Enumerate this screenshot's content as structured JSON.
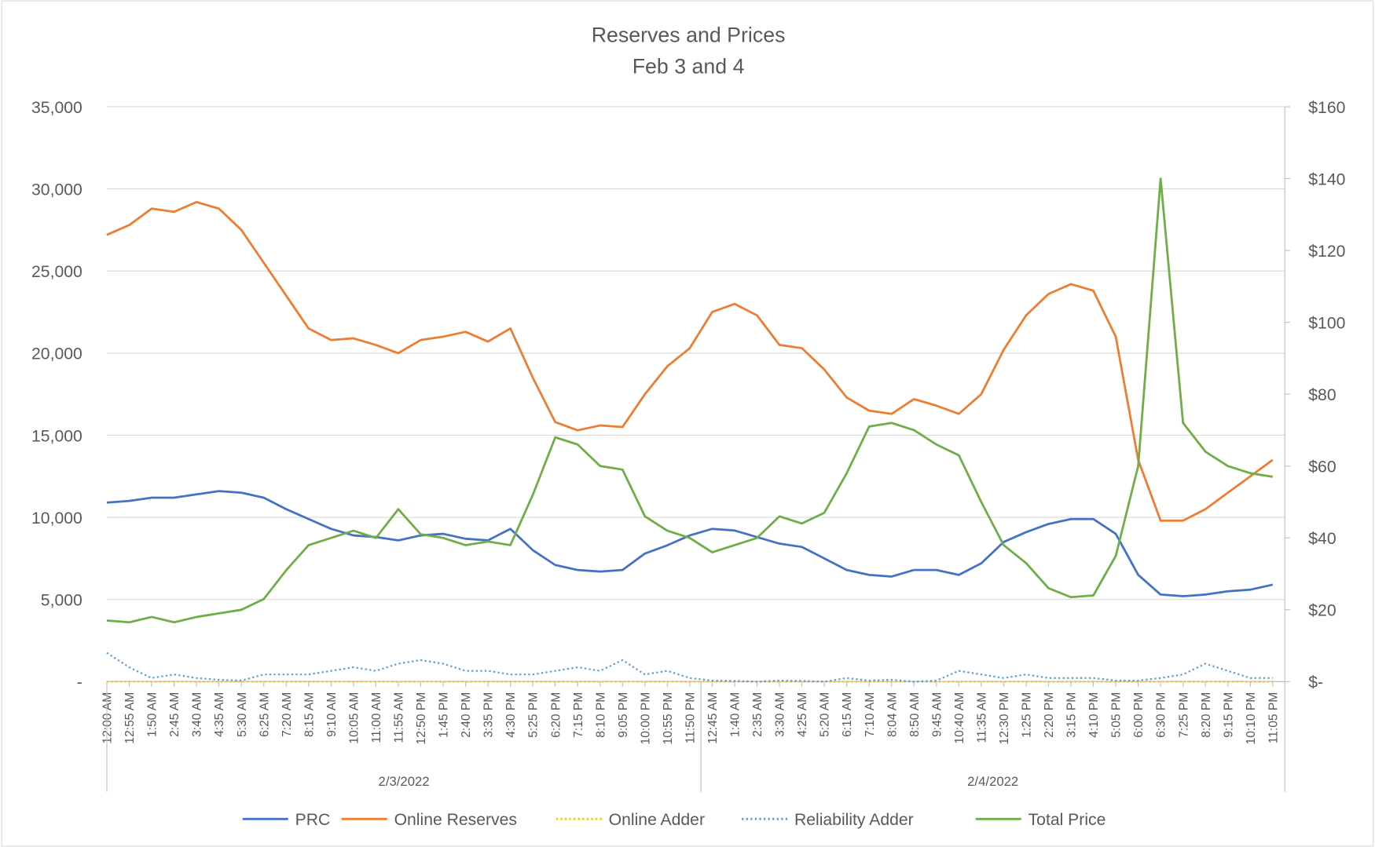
{
  "chart_data": {
    "type": "line",
    "title": "Reserves and Prices",
    "subtitle": "Feb 3 and 4",
    "groups": [
      {
        "name": "2/3/2022",
        "categories": [
          "12:00 AM",
          "12:55 AM",
          "1:50 AM",
          "2:45 AM",
          "3:40 AM",
          "4:35 AM",
          "5:30 AM",
          "6:25 AM",
          "7:20 AM",
          "8:15 AM",
          "9:10 AM",
          "10:05 AM",
          "11:00 AM",
          "11:55 AM",
          "12:50 PM",
          "1:45 PM",
          "2:40 PM",
          "3:35 PM",
          "4:30 PM",
          "5:25 PM",
          "6:20 PM",
          "7:15 PM",
          "8:10 PM",
          "9:05 PM",
          "10:00 PM",
          "10:55 PM",
          "11:50 PM"
        ]
      },
      {
        "name": "2/4/2022",
        "categories": [
          "12:45 AM",
          "1:40 AM",
          "2:35 AM",
          "3:30 AM",
          "4:25 AM",
          "5:20 AM",
          "6:15 AM",
          "7:10 AM",
          "8:04 AM",
          "8:50 AM",
          "9:45 AM",
          "10:40 AM",
          "11:35 AM",
          "12:30 PM",
          "1:25 PM",
          "2:20 PM",
          "3:15 PM",
          "4:10 PM",
          "5:05 PM",
          "6:00 PM",
          "6:30 PM",
          "7:25 PM",
          "8:20 PM",
          "9:15 PM",
          "10:10 PM",
          "11:05 PM"
        ]
      }
    ],
    "series": [
      {
        "name": "PRC",
        "color": "#4472c4",
        "axis": "y",
        "style": "solid",
        "values": [
          10900,
          11000,
          11200,
          11200,
          11400,
          11600,
          11500,
          11200,
          10500,
          9900,
          9300,
          8900,
          8800,
          8600,
          8900,
          9000,
          8700,
          8600,
          9300,
          8000,
          7100,
          6800,
          6700,
          6800,
          7800,
          8300,
          8900,
          9300,
          9200,
          8800,
          8400,
          8200,
          7500,
          6800,
          6500,
          6400,
          6800,
          6800,
          6500,
          7200,
          8500,
          9100,
          9600,
          9900,
          9900,
          9000,
          6500,
          5300,
          5200,
          5300,
          5500,
          5600,
          5900
        ]
      },
      {
        "name": "Online Reserves",
        "color": "#ed7d31",
        "axis": "y",
        "style": "solid",
        "values": [
          27200,
          27800,
          28800,
          28600,
          29200,
          28800,
          27500,
          25500,
          23500,
          21500,
          20800,
          20900,
          20500,
          20000,
          20800,
          21000,
          21300,
          20700,
          21500,
          18500,
          15800,
          15300,
          15600,
          15500,
          17500,
          19200,
          20300,
          22500,
          23000,
          22300,
          20500,
          20300,
          19000,
          17300,
          16500,
          16300,
          17200,
          16800,
          16300,
          17500,
          20200,
          22300,
          23600,
          24200,
          23800,
          21000,
          13500,
          9800,
          9800,
          10500,
          11500,
          12500,
          13500
        ]
      },
      {
        "name": "Online Adder",
        "color": "#ffc000",
        "axis": "y2",
        "style": "dotted",
        "values": [
          0,
          0,
          0,
          0,
          0,
          0,
          0,
          0,
          0,
          0,
          0,
          0,
          0,
          0,
          0,
          0,
          0,
          0,
          0,
          0,
          0,
          0,
          0,
          0,
          0,
          0,
          0,
          0,
          0,
          0,
          0,
          0,
          0,
          0,
          0,
          0,
          0,
          0,
          0,
          0,
          0,
          0,
          0,
          0,
          0,
          0,
          0,
          0,
          0,
          0,
          0,
          0,
          0
        ]
      },
      {
        "name": "Reliability Adder",
        "color": "#5b9bd5",
        "axis": "y2",
        "style": "dotted",
        "values": [
          8,
          4,
          1,
          2,
          1,
          0.5,
          0.3,
          2,
          2,
          2,
          3,
          4,
          3,
          5,
          6,
          5,
          3,
          3,
          2,
          2,
          3,
          4,
          3,
          6,
          2,
          3,
          1,
          0.3,
          0.2,
          0,
          0.3,
          0.2,
          0,
          1,
          0.3,
          0.5,
          0,
          0.3,
          3,
          2,
          1,
          2,
          1,
          1,
          1,
          0.3,
          0.3,
          1,
          2,
          5,
          3,
          1,
          1
        ]
      },
      {
        "name": "Total Price",
        "color": "#70ad47",
        "axis": "y2",
        "style": "solid",
        "values": [
          17,
          16.5,
          18,
          16.5,
          18,
          19,
          20,
          23,
          31,
          38,
          40,
          42,
          40,
          48,
          41,
          40,
          38,
          39,
          38,
          52,
          68,
          66,
          60,
          59,
          46,
          42,
          40,
          36,
          38,
          40,
          46,
          44,
          47,
          58,
          71,
          72,
          70,
          66,
          63,
          50,
          38,
          33,
          26,
          23.5,
          24,
          35,
          60,
          140,
          72,
          64,
          60,
          58,
          57
        ]
      }
    ],
    "ylim": [
      0,
      35000
    ],
    "yticks": [
      {
        "value": 0,
        "label": "-"
      },
      {
        "value": 5000,
        "label": "5,000"
      },
      {
        "value": 10000,
        "label": "10,000"
      },
      {
        "value": 15000,
        "label": "15,000"
      },
      {
        "value": 20000,
        "label": "20,000"
      },
      {
        "value": 25000,
        "label": "25,000"
      },
      {
        "value": 30000,
        "label": "30,000"
      },
      {
        "value": 35000,
        "label": "35,000"
      }
    ],
    "y2lim": [
      0,
      160
    ],
    "y2ticks": [
      {
        "value": 0,
        "label": "$-"
      },
      {
        "value": 20,
        "label": "$20"
      },
      {
        "value": 40,
        "label": "$40"
      },
      {
        "value": 60,
        "label": "$60"
      },
      {
        "value": 80,
        "label": "$80"
      },
      {
        "value": 100,
        "label": "$100"
      },
      {
        "value": 120,
        "label": "$120"
      },
      {
        "value": 140,
        "label": "$140"
      },
      {
        "value": 160,
        "label": "$160"
      }
    ],
    "grid": true,
    "legend": "bottom"
  }
}
